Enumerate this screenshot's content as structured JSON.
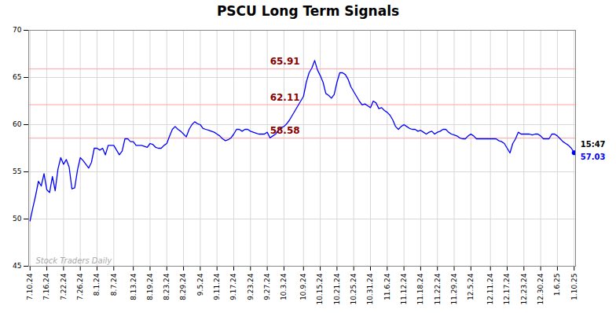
{
  "chart_data": {
    "type": "line",
    "title": "PSCU Long Term Signals",
    "categories": [
      "7.10.24",
      null,
      null,
      null,
      null,
      null,
      "7.16.24",
      null,
      null,
      null,
      null,
      null,
      "7.22.24",
      null,
      null,
      null,
      null,
      null,
      "7.26.24",
      null,
      null,
      null,
      null,
      null,
      "8.1.24",
      null,
      null,
      null,
      null,
      null,
      "8.7.24",
      null,
      null,
      null,
      null,
      null,
      null,
      "8.13.24",
      null,
      null,
      null,
      null,
      null,
      "8.19.24",
      null,
      null,
      null,
      null,
      null,
      "8.23.24",
      null,
      null,
      null,
      null,
      null,
      "8.29.24",
      null,
      null,
      null,
      null,
      null,
      "9.5.24",
      null,
      null,
      null,
      null,
      null,
      "9.11.24",
      null,
      null,
      null,
      null,
      null,
      "9.17.24",
      null,
      null,
      null,
      null,
      null,
      "9.23.24",
      null,
      null,
      null,
      null,
      null,
      "9.27.24",
      null,
      null,
      null,
      null,
      null,
      "10.3.24",
      null,
      null,
      null,
      null,
      null,
      null,
      "10.9.24",
      null,
      null,
      null,
      null,
      null,
      "10.15.24",
      null,
      null,
      null,
      null,
      null,
      "10.21.24",
      null,
      null,
      null,
      null,
      null,
      "10.25.24",
      null,
      null,
      null,
      null,
      null,
      "10.31.24",
      null,
      null,
      null,
      null,
      null,
      "11.6.24",
      null,
      null,
      null,
      null,
      null,
      "11.12.24",
      null,
      null,
      null,
      null,
      null,
      "11.18.24",
      null,
      null,
      null,
      null,
      null,
      "11.22.24",
      null,
      null,
      null,
      null,
      null,
      "11.29.24",
      null,
      null,
      null,
      null,
      null,
      "12.5.24",
      null,
      null,
      null,
      null,
      null,
      null,
      "12.11.24",
      null,
      null,
      null,
      null,
      null,
      "12.17.24",
      null,
      null,
      null,
      null,
      null,
      "12.23.24",
      null,
      null,
      null,
      null,
      null,
      "12.30.24",
      null,
      null,
      null,
      null,
      null,
      "1.6.25",
      null,
      null,
      null,
      null,
      null,
      "1.10.25"
    ],
    "series": [
      {
        "color": "blue",
        "values": [
          49.8,
          51.2,
          52.5,
          54.0,
          53.5,
          54.8,
          53.1,
          52.8,
          54.5,
          53.0,
          55.3,
          56.5,
          55.8,
          56.3,
          55.5,
          53.2,
          53.3,
          55.2,
          56.5,
          56.2,
          55.8,
          55.4,
          56.0,
          57.5,
          57.5,
          57.3,
          57.5,
          56.8,
          57.8,
          57.8,
          57.8,
          57.3,
          56.8,
          57.2,
          58.5,
          58.5,
          58.2,
          58.2,
          57.8,
          57.8,
          57.8,
          57.7,
          57.6,
          58.0,
          57.9,
          57.6,
          57.5,
          57.5,
          57.8,
          58.0,
          58.8,
          59.5,
          59.8,
          59.5,
          59.3,
          59.0,
          58.7,
          59.5,
          60.0,
          60.3,
          60.1,
          60.0,
          59.6,
          59.5,
          59.4,
          59.3,
          59.2,
          59.0,
          58.8,
          58.5,
          58.3,
          58.4,
          58.6,
          59.0,
          59.5,
          59.5,
          59.3,
          59.5,
          59.5,
          59.3,
          59.2,
          59.1,
          59.0,
          59.0,
          59.0,
          59.2,
          58.6,
          58.8,
          59.0,
          59.4,
          59.7,
          59.8,
          60.1,
          60.5,
          61.0,
          61.5,
          62.0,
          62.5,
          63.0,
          64.5,
          65.5,
          66.0,
          66.8,
          65.8,
          65.2,
          64.5,
          63.3,
          63.1,
          62.8,
          63.2,
          64.5,
          65.5,
          65.5,
          65.3,
          64.8,
          64.0,
          63.5,
          63.0,
          62.5,
          62.1,
          62.2,
          62.0,
          61.8,
          62.5,
          62.3,
          61.7,
          61.8,
          61.5,
          61.3,
          61.0,
          60.5,
          59.8,
          59.5,
          59.8,
          60.0,
          59.8,
          59.6,
          59.5,
          59.5,
          59.3,
          59.4,
          59.2,
          59.0,
          59.2,
          59.3,
          59.0,
          59.2,
          59.3,
          59.5,
          59.5,
          59.2,
          59.0,
          58.9,
          58.8,
          58.6,
          58.5,
          58.5,
          58.8,
          59.0,
          58.8,
          58.5,
          58.5,
          58.5,
          58.5,
          58.5,
          58.5,
          58.5,
          58.5,
          58.3,
          58.2,
          58.0,
          57.5,
          57.0,
          58.0,
          58.5,
          59.2,
          59.0,
          59.0,
          59.0,
          59.0,
          58.9,
          59.0,
          59.0,
          58.8,
          58.5,
          58.5,
          58.5,
          59.0,
          59.0,
          58.8,
          58.5,
          58.2,
          58.0,
          57.8,
          57.5,
          57.03
        ]
      }
    ],
    "hlines": [
      {
        "y": 65.91,
        "color": "#ffb3b3"
      },
      {
        "y": 62.11,
        "color": "#ffb3b3"
      },
      {
        "y": 58.58,
        "color": "#ffb3b3"
      }
    ],
    "annotations": [
      {
        "text": "65.91",
        "y": 65.91,
        "color": "#8b0000"
      },
      {
        "text": "62.11",
        "y": 62.11,
        "color": "#8b0000"
      },
      {
        "text": "58.58",
        "y": 58.58,
        "color": "#8b0000"
      }
    ],
    "end_labels": [
      {
        "text": "15:47",
        "color": "black"
      },
      {
        "text": "57.03",
        "color": "blue"
      }
    ],
    "watermark": "Stock Traders Daily",
    "ylim": [
      45,
      70
    ],
    "yticks": [
      45,
      50,
      55,
      60,
      65,
      70
    ],
    "grid": true
  }
}
